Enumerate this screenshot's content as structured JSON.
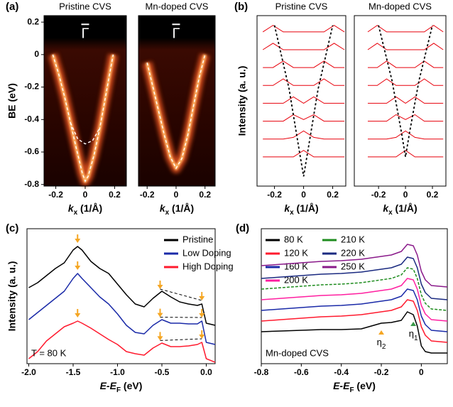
{
  "chart_data": [
    {
      "type": "heatmap",
      "panel_label": "(a)",
      "title": "Pristine CVS",
      "marker": "Γ",
      "ylabel": "BE (eV)",
      "xlabel": [
        "k",
        "x",
        " (1/Å)"
      ],
      "xlim": [
        -0.28,
        0.28
      ],
      "ylim": [
        -0.81,
        0.24
      ],
      "xticks": [
        -0.2,
        0,
        0.2
      ],
      "yticks": [
        0.2,
        0,
        -0.2,
        -0.4,
        -0.6,
        -0.8
      ],
      "bands": [
        {
          "x": [
            -0.22,
            -0.18,
            -0.14,
            -0.1,
            -0.06,
            -0.02,
            0,
            0.02,
            0.06,
            0.1,
            0.14,
            0.17,
            0.19
          ],
          "values": [
            0,
            -0.12,
            -0.26,
            -0.42,
            -0.58,
            -0.73,
            -0.78,
            -0.75,
            -0.62,
            -0.45,
            -0.25,
            -0.1,
            0
          ],
          "glow": true
        },
        {
          "x": [
            -0.1,
            -0.05,
            0,
            0.05,
            0.1
          ],
          "values": [
            -0.42,
            -0.52,
            -0.55,
            -0.53,
            -0.45
          ],
          "glow": false
        }
      ]
    },
    {
      "type": "heatmap",
      "title": "Mn-doped CVS",
      "marker": "Γ",
      "xlabel": [
        "k",
        "x",
        " (1/Å)"
      ],
      "xlim": [
        -0.26,
        0.27
      ],
      "ylim": [
        -0.81,
        0.24
      ],
      "xticks": [
        -0.2,
        0,
        0.2
      ],
      "bands": [
        {
          "x": [
            -0.2,
            -0.16,
            -0.12,
            -0.08,
            -0.04,
            0,
            0.04,
            0.08,
            0.12,
            0.16,
            0.2
          ],
          "values": [
            -0.05,
            -0.2,
            -0.35,
            -0.5,
            -0.63,
            -0.7,
            -0.64,
            -0.5,
            -0.32,
            -0.14,
            0
          ],
          "glow": true
        }
      ]
    },
    {
      "type": "stack",
      "panel_label": "(b)",
      "title": "Pristine CVS",
      "ylabel": "Intensity (a. u.)",
      "xlabel": [
        "k",
        "x",
        " (1/Å)"
      ],
      "xlim": [
        -0.32,
        0.29
      ],
      "ylim": [
        0,
        105
      ],
      "xticks": [
        -0.2,
        0,
        0.2
      ],
      "color": "#e8000b",
      "x": [
        -0.28,
        -0.21,
        -0.14,
        -0.07,
        0,
        0.07,
        0.14,
        0.21,
        0.28
      ],
      "curves": [
        [
          95,
          99,
          95,
          95,
          95,
          95,
          95,
          99,
          95
        ],
        [
          84,
          88,
          84,
          84,
          84,
          84,
          84,
          88,
          84
        ],
        [
          73,
          73,
          77,
          73,
          73,
          73,
          77,
          73,
          73
        ],
        [
          62,
          62,
          66,
          62,
          62,
          62,
          66,
          62,
          62
        ],
        [
          51,
          51,
          51,
          55,
          51,
          55,
          51,
          51,
          51
        ],
        [
          40,
          40,
          40,
          44,
          41,
          44,
          40,
          40,
          40
        ],
        [
          29,
          29,
          29,
          30,
          34,
          30,
          29,
          29,
          29
        ],
        [
          18,
          18,
          18,
          18,
          22,
          18,
          18,
          18,
          18
        ]
      ],
      "guide": {
        "x": [
          -0.2,
          -0.1,
          -0.03,
          0,
          0.03,
          0.1,
          0.2
        ],
        "values": [
          99,
          60,
          22,
          6,
          22,
          60,
          99
        ]
      }
    },
    {
      "type": "stack",
      "title": "Mn-doped CVS",
      "xlabel": [
        "k",
        "x",
        " (1/Å)"
      ],
      "xlim": [
        -0.38,
        0.3
      ],
      "ylim": [
        0,
        105
      ],
      "xticks": [
        -0.2,
        0,
        0.2
      ],
      "color": "#e8000b",
      "x": [
        -0.28,
        -0.21,
        -0.14,
        -0.07,
        0,
        0.07,
        0.14,
        0.21,
        0.28
      ],
      "curves": [
        [
          95,
          99,
          95,
          95,
          95,
          95,
          95,
          99,
          95
        ],
        [
          84,
          88,
          84,
          84,
          84,
          84,
          84,
          88,
          84
        ],
        [
          73,
          73,
          77,
          73,
          73,
          73,
          77,
          73,
          73
        ],
        [
          62,
          62,
          66,
          62,
          62,
          62,
          66,
          62,
          62
        ],
        [
          51,
          51,
          51,
          55,
          51,
          55,
          51,
          51,
          51
        ],
        [
          40,
          40,
          40,
          44,
          41,
          44,
          40,
          40,
          40
        ],
        [
          29,
          29,
          29,
          30,
          34,
          30,
          29,
          29,
          29
        ],
        [
          18,
          18,
          18,
          18,
          22,
          18,
          18,
          18,
          18
        ]
      ],
      "guide": {
        "x": [
          -0.2,
          -0.1,
          -0.03,
          0,
          0.03,
          0.1,
          0.2
        ],
        "values": [
          99,
          65,
          33,
          18,
          33,
          65,
          99
        ]
      }
    },
    {
      "type": "line",
      "panel_label": "(c)",
      "ylabel": "Intensity (a. u.)",
      "xlabel": [
        "E-E",
        "F",
        " (eV)"
      ],
      "xlim": [
        -2.02,
        0.1
      ],
      "ylim": [
        0,
        190
      ],
      "xticks": [
        {
          "value": -2,
          "label": "-2.0"
        },
        {
          "value": -1.5,
          "label": "-1.5"
        },
        {
          "value": -1,
          "label": "-1.0"
        },
        {
          "value": -0.5,
          "label": "-0.5"
        },
        {
          "value": 0,
          "label": "0.0"
        }
      ],
      "x": [
        -2.0,
        -1.9,
        -1.8,
        -1.7,
        -1.6,
        -1.5,
        -1.45,
        -1.4,
        -1.3,
        -1.2,
        -1.1,
        -1.0,
        -0.9,
        -0.8,
        -0.7,
        -0.6,
        -0.5,
        -0.4,
        -0.3,
        -0.2,
        -0.1,
        -0.05,
        0,
        0.1
      ],
      "series": [
        {
          "name": "Pristine",
          "color": "#000000",
          "values": [
            107,
            114,
            124,
            134,
            142,
            160,
            165,
            160,
            144,
            134,
            127,
            112,
            97,
            84,
            80,
            92,
            102,
            94,
            87,
            84,
            82,
            84,
            57,
            54
          ]
        },
        {
          "name": "Low Doping",
          "color": "#1a2aa8",
          "values": [
            62,
            72,
            82,
            92,
            102,
            120,
            127,
            120,
            107,
            94,
            84,
            70,
            54,
            44,
            42,
            54,
            62,
            57,
            57,
            56,
            56,
            60,
            30,
            27
          ]
        },
        {
          "name": "High Doping",
          "color": "#ff1a2e",
          "values": [
            7,
            17,
            32,
            42,
            52,
            57,
            60,
            57,
            50,
            42,
            34,
            27,
            17,
            14,
            12,
            22,
            29,
            24,
            24,
            25,
            27,
            30,
            7,
            2
          ]
        }
      ],
      "legend_loc": "upper right",
      "note": "T = 80 K",
      "note_loc": "lower left",
      "arrows": [
        -1.45,
        -0.52,
        -0.05
      ],
      "arrow_color": "#f5a623",
      "connector": [
        1,
        2
      ]
    },
    {
      "type": "line",
      "panel_label": "(d)",
      "xlabel": [
        "E-E",
        "F",
        " (eV)"
      ],
      "xlim": [
        -0.8,
        0.13
      ],
      "ylim": [
        0,
        190
      ],
      "xticks": [
        -0.8,
        -0.6,
        -0.4,
        -0.2,
        0
      ],
      "x": [
        -0.8,
        -0.7,
        -0.6,
        -0.5,
        -0.4,
        -0.3,
        -0.2,
        -0.15,
        -0.1,
        -0.07,
        -0.04,
        -0.02,
        0,
        0.02,
        0.05,
        0.13
      ],
      "series": [
        {
          "name": "80 K",
          "color": "#000000",
          "values": [
            45,
            46,
            47,
            48,
            48,
            49,
            57,
            58,
            61,
            73,
            69,
            53,
            25,
            17,
            15,
            15
          ]
        },
        {
          "name": "120 K",
          "color": "#ff1a2e",
          "values": [
            60,
            62,
            64,
            66,
            67,
            69,
            73,
            75,
            80,
            90,
            88,
            75,
            52,
            40,
            32,
            30
          ]
        },
        {
          "name": "160 K",
          "color": "#1a2aa8",
          "values": [
            75,
            77,
            79,
            81,
            82,
            84,
            88,
            90,
            95,
            105,
            103,
            90,
            67,
            55,
            47,
            45
          ]
        },
        {
          "name": "200 K",
          "color": "#ff1fa0",
          "values": [
            90,
            92,
            94,
            96,
            97,
            99,
            103,
            105,
            110,
            120,
            118,
            105,
            82,
            70,
            62,
            60
          ]
        },
        {
          "name": "210 K",
          "color": "#1e8c1e",
          "dash": true,
          "values": [
            105,
            107,
            109,
            111,
            112,
            114,
            118,
            120,
            125,
            135,
            133,
            120,
            97,
            85,
            77,
            75
          ]
        },
        {
          "name": "220 K",
          "color": "#1a2a80",
          "values": [
            120,
            122,
            124,
            126,
            127,
            129,
            133,
            135,
            140,
            150,
            148,
            135,
            112,
            100,
            92,
            90
          ]
        },
        {
          "name": "250 K",
          "color": "#8a1a8a",
          "values": [
            138,
            140,
            142,
            144,
            145,
            147,
            151,
            153,
            158,
            168,
            166,
            153,
            130,
            118,
            110,
            108
          ]
        }
      ],
      "legend_loc": "upper left",
      "legend_columns": 2,
      "note": "Mn-doped CVS",
      "note_loc": "lower left",
      "peak_labels": [
        {
          "label": [
            "η",
            "2"
          ],
          "x": -0.2,
          "color": "#f5a623"
        },
        {
          "label": [
            "η",
            "1"
          ],
          "x": -0.04,
          "color": "#3a9a4a"
        }
      ]
    }
  ]
}
